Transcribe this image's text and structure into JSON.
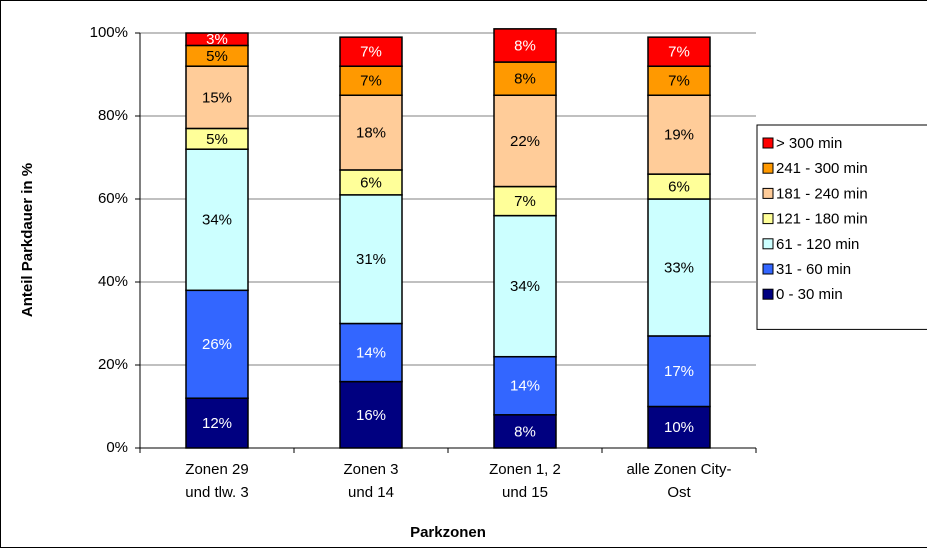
{
  "chart_data": {
    "type": "stacked_bar",
    "y_label": "Anteil Parkdauer in %",
    "x_label": "Parkzonen",
    "categories": [
      [
        "Zonen 29",
        "und tlw. 3"
      ],
      [
        "Zonen 3",
        "und 14"
      ],
      [
        "Zonen 1, 2",
        "und 15"
      ],
      [
        "alle Zonen City-",
        "Ost"
      ]
    ],
    "series": [
      {
        "name": "0 - 30 min",
        "color": "#000080",
        "values": [
          12,
          16,
          8,
          10
        ],
        "value_labels": [
          "12%",
          "16%",
          "8%",
          "10%"
        ]
      },
      {
        "name": "31 - 60 min",
        "color": "#3366ff",
        "values": [
          26,
          14,
          14,
          17
        ],
        "value_labels": [
          "26%",
          "14%",
          "14%",
          "17%"
        ]
      },
      {
        "name": "61 - 120 min",
        "color": "#ccffff",
        "values": [
          34,
          31,
          34,
          33
        ],
        "value_labels": [
          "34%",
          "31%",
          "34%",
          "33%"
        ]
      },
      {
        "name": "121 - 180 min",
        "color": "#ffff99",
        "values": [
          5,
          6,
          7,
          6
        ],
        "value_labels": [
          "5%",
          "6%",
          "7%",
          "6%"
        ]
      },
      {
        "name": "181 - 240 min",
        "color": "#ffcc99",
        "values": [
          15,
          18,
          22,
          19
        ],
        "value_labels": [
          "15%",
          "18%",
          "22%",
          "19%"
        ]
      },
      {
        "name": "241 - 300 min",
        "color": "#ff9900",
        "values": [
          5,
          7,
          8,
          7
        ],
        "value_labels": [
          "5%",
          "7%",
          "8%",
          "7%"
        ]
      },
      {
        "name": "> 300 min",
        "color": "#ff0000",
        "values": [
          3,
          7,
          8,
          7
        ],
        "value_labels": [
          "3%",
          "7%",
          "8%",
          "7%"
        ]
      }
    ],
    "ylim": [
      0,
      100
    ],
    "yticks": [
      {
        "value": 0,
        "label": "0%"
      },
      {
        "value": 20,
        "label": "20%"
      },
      {
        "value": 40,
        "label": "40%"
      },
      {
        "value": 60,
        "label": "60%"
      },
      {
        "value": 80,
        "label": "80%"
      },
      {
        "value": 100,
        "label": "100%"
      }
    ],
    "grid": true,
    "legend": "right"
  }
}
